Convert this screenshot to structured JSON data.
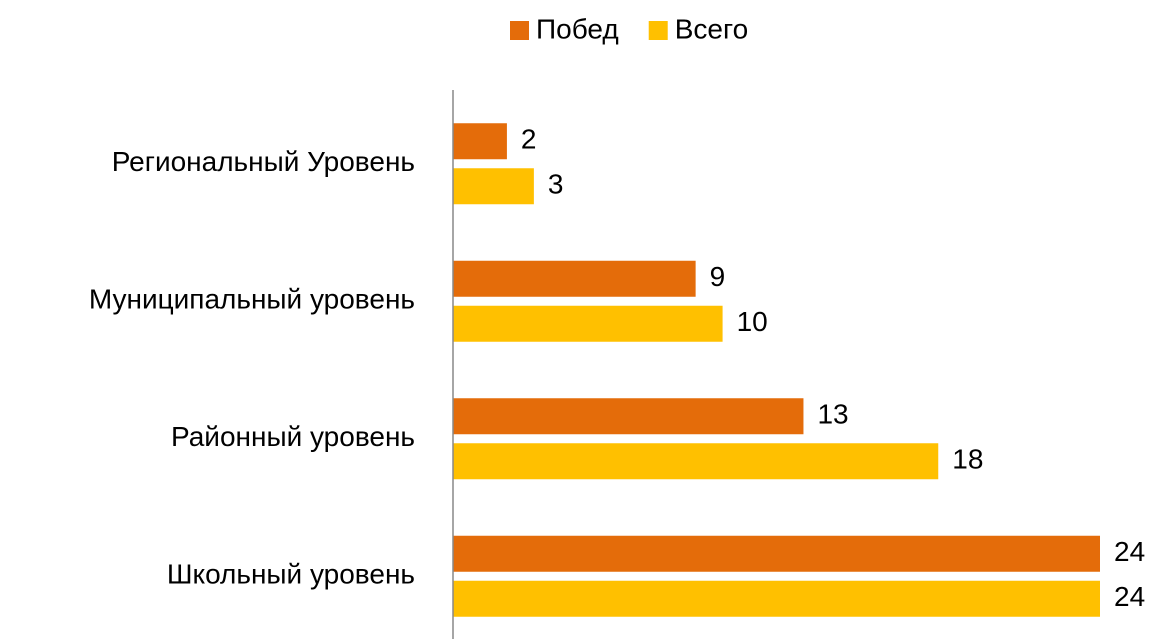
{
  "chart_data": {
    "type": "bar",
    "orientation": "horizontal",
    "categories": [
      "Региональный Уровень",
      "Муниципальный уровень",
      "Районный уровень",
      "Школьный уровень"
    ],
    "series": [
      {
        "name": "Побед",
        "color": "#e46c0a",
        "values": [
          2,
          9,
          13,
          24
        ]
      },
      {
        "name": "Всего",
        "color": "#ffc000",
        "values": [
          3,
          10,
          18,
          24
        ]
      }
    ],
    "legend": "top"
  }
}
